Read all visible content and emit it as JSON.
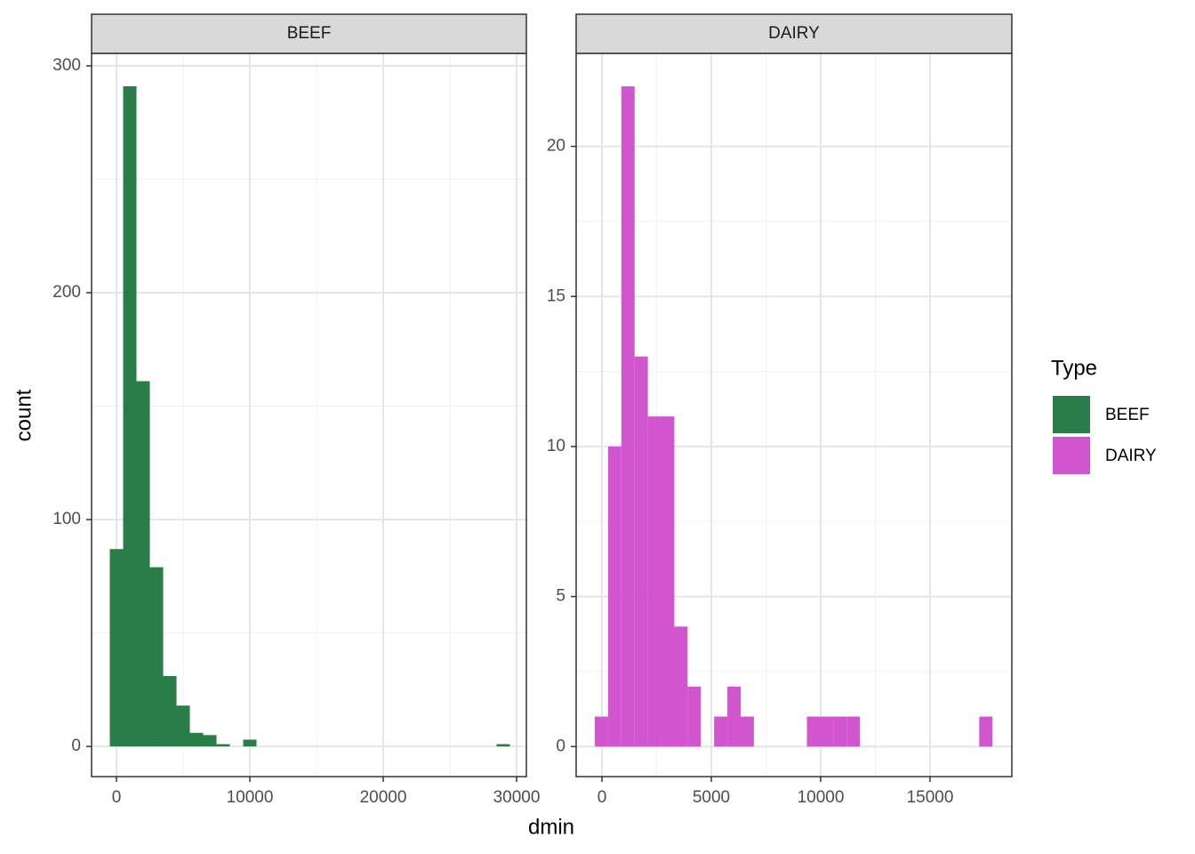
{
  "shared": {
    "xlabel": "dmin",
    "ylabel": "count",
    "legend_title": "Type"
  },
  "chart_data": [
    {
      "type": "histogram",
      "series": [
        {
          "name": "BEEF",
          "color": "#2a7d48",
          "values": [
            87,
            291,
            161,
            79,
            31,
            18,
            6,
            5,
            1,
            0,
            3,
            0,
            0,
            0,
            0,
            0,
            0,
            0,
            0,
            0,
            0,
            0,
            0,
            0,
            0,
            0,
            0,
            0,
            0,
            1
          ]
        }
      ],
      "bins": [
        -500,
        500,
        1500,
        2500,
        3500,
        4500,
        5500,
        6500,
        7500,
        8500,
        9500,
        10500,
        11500,
        12500,
        13500,
        14500,
        15500,
        16500,
        17500,
        18500,
        19500,
        20500,
        21500,
        22500,
        23500,
        24500,
        25500,
        26500,
        27500,
        28500,
        29500
      ],
      "xlim": [
        -1867,
        30733
      ],
      "ylim": [
        -13.3,
        305.5
      ],
      "xticks": [
        0,
        10000,
        20000,
        30000
      ],
      "yticks": [
        0,
        100,
        200,
        300
      ],
      "grid": true
    },
    {
      "type": "histogram",
      "series": [
        {
          "name": "DAIRY",
          "color": "#d055cf",
          "values": [
            1,
            10,
            22,
            13,
            11,
            11,
            4,
            2,
            0,
            1,
            2,
            1,
            0,
            0,
            0,
            0,
            1,
            1,
            1,
            1,
            0,
            0,
            0,
            0,
            0,
            0,
            0,
            0,
            0,
            1
          ]
        }
      ],
      "bins": [
        -325,
        281,
        887,
        1493,
        2099,
        2705,
        3311,
        3917,
        4523,
        5129,
        5735,
        6341,
        6947,
        7553,
        8159,
        8765,
        9371,
        9977,
        10583,
        11189,
        11795,
        12401,
        13007,
        13613,
        14219,
        14825,
        15431,
        16037,
        16643,
        17249,
        17855
      ],
      "xlim": [
        -1179,
        18740
      ],
      "ylim": [
        -1.0,
        23.1
      ],
      "xticks": [
        0,
        5000,
        10000,
        15000
      ],
      "yticks": [
        0,
        5,
        10,
        15,
        20
      ],
      "grid": true
    }
  ]
}
